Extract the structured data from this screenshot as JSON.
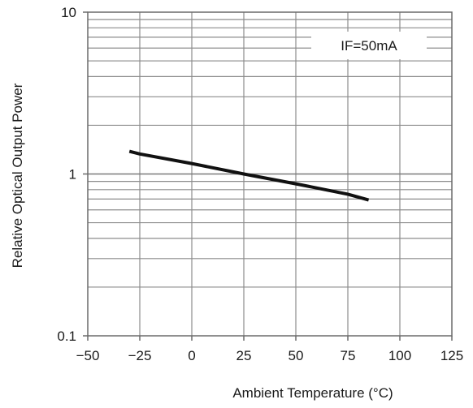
{
  "chart_data": {
    "type": "line",
    "title": "",
    "xlabel": "Ambient Temperature  (°C)",
    "ylabel": "Relative Optical Output Power",
    "xlim": [
      -50,
      125
    ],
    "ylim": [
      0.1,
      10
    ],
    "y_scale": "log",
    "grid": true,
    "x_ticks": [
      -50,
      -25,
      0,
      25,
      50,
      75,
      100,
      125
    ],
    "x_tick_labels": [
      "−50",
      "−25",
      "0",
      "25",
      "50",
      "75",
      "100",
      "125"
    ],
    "y_ticks": [
      0.1,
      1,
      10
    ],
    "y_tick_labels": [
      "0.1",
      "1",
      "10"
    ],
    "legend": {
      "position": "top-right",
      "text": "IF=50mA"
    },
    "series": [
      {
        "x": [
          -30,
          -25,
          0,
          25,
          50,
          75,
          85
        ],
        "y": [
          1.38,
          1.33,
          1.16,
          1.0,
          0.87,
          0.75,
          0.69
        ]
      }
    ]
  }
}
